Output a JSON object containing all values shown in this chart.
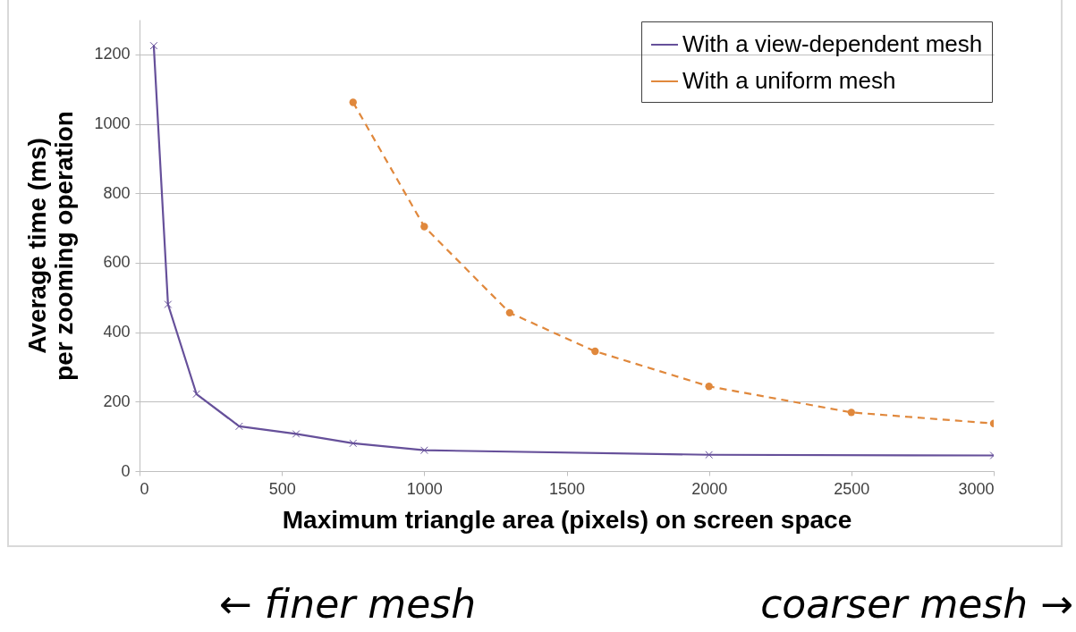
{
  "chart_data": {
    "type": "line",
    "xlabel": "Maximum triangle area (pixels) on screen space",
    "ylabel": "Average time (ms)\nper zooming operation",
    "xlim": [
      0,
      3000
    ],
    "xticks": [
      0,
      500,
      1000,
      1500,
      2000,
      2500,
      3000
    ],
    "ylim": [
      0,
      1300
    ],
    "yticks": [
      0,
      200,
      400,
      600,
      800,
      1000,
      1200
    ],
    "grid": "y",
    "legend": "top right",
    "series": [
      {
        "name": "With a view-dependent mesh",
        "color": "#66509a",
        "marker": "cross",
        "line_style": "solid",
        "x": [
          50,
          100,
          200,
          350,
          550,
          750,
          1000,
          2000,
          3000
        ],
        "values": [
          1225,
          480,
          222,
          129,
          107,
          80,
          60,
          47,
          45
        ]
      },
      {
        "name": "With a uniform mesh",
        "color": "#e0883c",
        "marker": "circle",
        "line_style": "dashed",
        "x": [
          750,
          1000,
          1300,
          1600,
          2000,
          2500,
          3000
        ],
        "values": [
          1062,
          704,
          456,
          345,
          244,
          169,
          137
        ]
      }
    ],
    "annotations": [
      "← finer mesh",
      "coarser mesh →"
    ]
  }
}
